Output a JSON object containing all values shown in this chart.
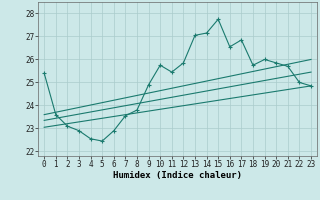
{
  "xlabel": "Humidex (Indice chaleur)",
  "background_color": "#cce8e8",
  "line_color": "#1a7a6e",
  "grid_color": "#aacccc",
  "xlim": [
    -0.5,
    23.5
  ],
  "ylim": [
    21.8,
    28.5
  ],
  "yticks": [
    22,
    23,
    24,
    25,
    26,
    27,
    28
  ],
  "xticks": [
    0,
    1,
    2,
    3,
    4,
    5,
    6,
    7,
    8,
    9,
    10,
    11,
    12,
    13,
    14,
    15,
    16,
    17,
    18,
    19,
    20,
    21,
    22,
    23
  ],
  "main_x": [
    0,
    1,
    2,
    3,
    4,
    5,
    6,
    7,
    8,
    9,
    10,
    11,
    12,
    13,
    14,
    15,
    16,
    17,
    18,
    19,
    20,
    21,
    22,
    23
  ],
  "main_y": [
    25.4,
    23.6,
    23.1,
    22.9,
    22.55,
    22.45,
    22.9,
    23.55,
    23.8,
    24.9,
    25.75,
    25.45,
    25.85,
    27.05,
    27.15,
    27.75,
    26.55,
    26.85,
    25.75,
    26.0,
    25.85,
    25.7,
    25.0,
    24.85
  ],
  "upper_line_x": [
    0,
    23
  ],
  "upper_line_y": [
    23.6,
    26.0
  ],
  "middle_line_x": [
    0,
    23
  ],
  "middle_line_y": [
    23.35,
    25.45
  ],
  "lower_line_x": [
    0,
    23
  ],
  "lower_line_y": [
    23.05,
    24.85
  ],
  "tick_fontsize": 5.5,
  "label_fontsize": 6.5
}
